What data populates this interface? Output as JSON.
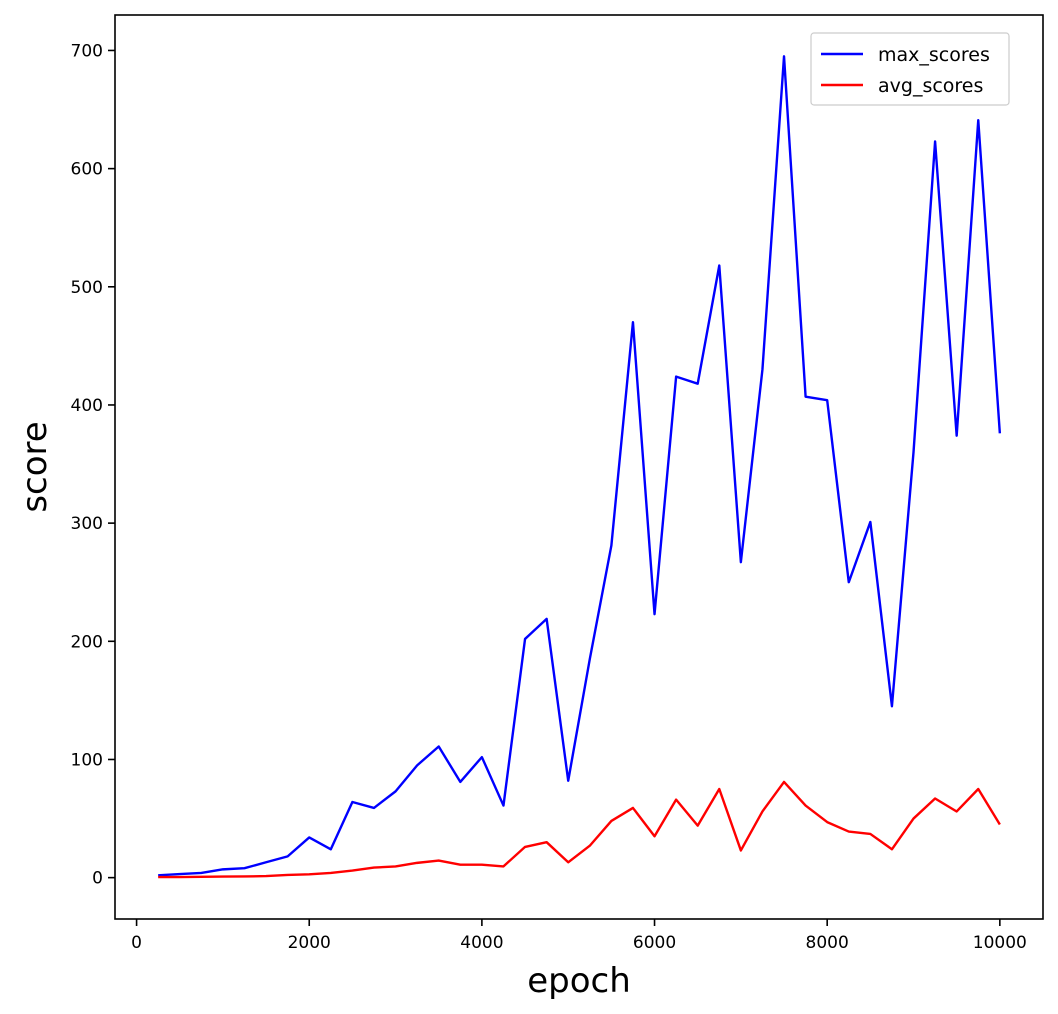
{
  "chart_data": {
    "type": "line",
    "title": "",
    "xlabel": "epoch",
    "ylabel": "score",
    "xlim": [
      -250,
      10500
    ],
    "ylim": [
      -35,
      730
    ],
    "xticks": [
      0,
      2000,
      4000,
      6000,
      8000,
      10000
    ],
    "yticks": [
      0,
      100,
      200,
      300,
      400,
      500,
      600,
      700
    ],
    "grid": false,
    "legend_position": "top-right",
    "x": [
      250,
      500,
      750,
      1000,
      1250,
      1500,
      1750,
      2000,
      2250,
      2500,
      2750,
      3000,
      3250,
      3500,
      3750,
      4000,
      4250,
      4500,
      4750,
      5000,
      5250,
      5500,
      5750,
      6000,
      6250,
      6500,
      6750,
      7000,
      7250,
      7500,
      7750,
      8000,
      8250,
      8500,
      8750,
      9000,
      9250,
      9500,
      9750,
      10000
    ],
    "series": [
      {
        "name": "max_scores",
        "color": "#0000ff",
        "values": [
          2,
          3,
          4,
          7,
          8,
          13,
          18,
          34,
          24,
          64,
          59,
          73,
          95,
          111,
          81,
          102,
          61,
          202,
          219,
          82,
          185,
          281,
          470,
          223,
          424,
          418,
          518,
          267,
          430,
          695,
          407,
          404,
          250,
          301,
          145,
          360,
          623,
          374,
          641,
          376
        ]
      },
      {
        "name": "avg_scores",
        "color": "#ff0000",
        "values": [
          0.5,
          0.5,
          0.7,
          0.9,
          1,
          1.3,
          2.3,
          2.8,
          4,
          6,
          8.5,
          9.5,
          12.5,
          14.5,
          11,
          11,
          9.5,
          26,
          30,
          13,
          27,
          48,
          59,
          35,
          66,
          44,
          75,
          23,
          56,
          81,
          61,
          47,
          39,
          37,
          24,
          50,
          67,
          56,
          75,
          45
        ]
      }
    ]
  }
}
